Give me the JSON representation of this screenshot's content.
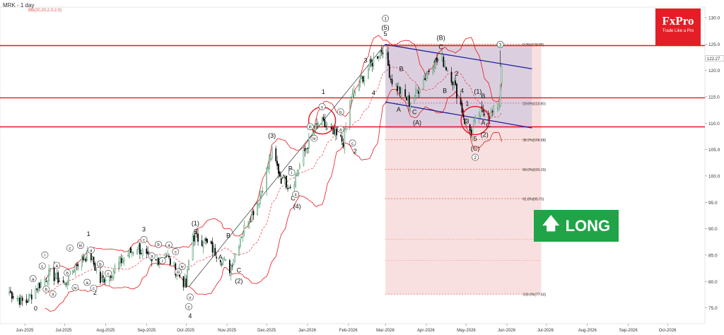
{
  "chart_data": {
    "type": "candlestick",
    "title": "MRK - 1 day",
    "indicator": "BB(20,20,2,0,2.0)",
    "ylim": [
      72,
      132
    ],
    "y_ticks": [
      75,
      80,
      85,
      90,
      95,
      100,
      105,
      110,
      115,
      120,
      125,
      130
    ],
    "x_ticks": [
      "Jun-2025",
      "Jul-2025",
      "Aug-2025",
      "Sep-2025",
      "Oct-2025",
      "Nov-2025",
      "Dec-2025",
      "Jan-2026",
      "Feb-2026",
      "Mar-2026",
      "Apr-2026",
      "May-2026",
      "Jun-2026",
      "Jul-2026",
      "Aug-2026",
      "Sep-2026",
      "Oct-2026"
    ],
    "last_price": "122.27",
    "horizontal_levels": [
      124.7,
      114.8,
      109.3
    ],
    "fib_levels": [
      {
        "label": "0.0%(124.98)",
        "value": 124.98
      },
      {
        "label": "23.6%(113.80)",
        "value": 113.8
      },
      {
        "label": "38.2%(106.88)",
        "value": 106.88
      },
      {
        "label": "50.0%(101.29)",
        "value": 101.29
      },
      {
        "label": "61.8%(95.70)",
        "value": 95.7
      },
      {
        "label": "100.0%(77.60)",
        "value": 77.6
      }
    ],
    "close_path": [
      {
        "d": "2025-05-20",
        "v": 78
      },
      {
        "d": "2025-06-01",
        "v": 75.8
      },
      {
        "d": "2025-06-10",
        "v": 79
      },
      {
        "d": "2025-06-20",
        "v": 81.5
      },
      {
        "d": "2025-07-01",
        "v": 79.5
      },
      {
        "d": "2025-07-10",
        "v": 83.5
      },
      {
        "d": "2025-07-20",
        "v": 85.3
      },
      {
        "d": "2025-07-28",
        "v": 80
      },
      {
        "d": "2025-08-05",
        "v": 81.6
      },
      {
        "d": "2025-08-15",
        "v": 84.5
      },
      {
        "d": "2025-08-25",
        "v": 86.6
      },
      {
        "d": "2025-09-05",
        "v": 83.3
      },
      {
        "d": "2025-09-15",
        "v": 85.2
      },
      {
        "d": "2025-09-25",
        "v": 81.5
      },
      {
        "d": "2025-10-01",
        "v": 79
      },
      {
        "d": "2025-10-05",
        "v": 88.7
      },
      {
        "d": "2025-10-15",
        "v": 87.5
      },
      {
        "d": "2025-10-25",
        "v": 85.2
      },
      {
        "d": "2025-11-03",
        "v": 82.4
      },
      {
        "d": "2025-11-12",
        "v": 89
      },
      {
        "d": "2025-11-25",
        "v": 95.5
      },
      {
        "d": "2025-12-05",
        "v": 104.5
      },
      {
        "d": "2025-12-12",
        "v": 99.5
      },
      {
        "d": "2025-12-20",
        "v": 98
      },
      {
        "d": "2026-01-01",
        "v": 106
      },
      {
        "d": "2026-01-10",
        "v": 110.5
      },
      {
        "d": "2026-01-20",
        "v": 108
      },
      {
        "d": "2026-01-28",
        "v": 106.5
      },
      {
        "d": "2026-02-03",
        "v": 114.5
      },
      {
        "d": "2026-02-10",
        "v": 118
      },
      {
        "d": "2026-02-20",
        "v": 122
      },
      {
        "d": "2026-02-28",
        "v": 124.5
      },
      {
        "d": "2026-03-05",
        "v": 118.5
      },
      {
        "d": "2026-03-12",
        "v": 116
      },
      {
        "d": "2026-03-20",
        "v": 113.7
      },
      {
        "d": "2026-03-27",
        "v": 117
      },
      {
        "d": "2026-04-05",
        "v": 121
      },
      {
        "d": "2026-04-12",
        "v": 122.5
      },
      {
        "d": "2026-04-20",
        "v": 118.8
      },
      {
        "d": "2026-04-27",
        "v": 113.5
      },
      {
        "d": "2026-05-01",
        "v": 109.5
      },
      {
        "d": "2026-05-05",
        "v": 108.3
      },
      {
        "d": "2026-05-10",
        "v": 111.5
      },
      {
        "d": "2026-05-15",
        "v": 112.5
      },
      {
        "d": "2026-05-20",
        "v": 111.5
      },
      {
        "d": "2026-05-26",
        "v": 113.8
      },
      {
        "d": "2026-05-28",
        "v": 121.5
      }
    ],
    "wave_labels": [
      {
        "d": "2025-06-09",
        "v": 74.5,
        "t": "0",
        "c": false
      },
      {
        "d": "2025-06-07",
        "v": 80.2,
        "t": "a",
        "c": true
      },
      {
        "d": "2025-06-14",
        "v": 82.6,
        "t": "c",
        "c": true
      },
      {
        "d": "2025-06-16",
        "v": 84.7,
        "t": "i",
        "c": true
      },
      {
        "d": "2025-06-17",
        "v": 78.2,
        "t": "b",
        "c": true
      },
      {
        "d": "2025-06-22",
        "v": 77.3,
        "t": "ii",
        "c": true
      },
      {
        "d": "2025-06-25",
        "v": 82.7,
        "t": "a",
        "c": true
      },
      {
        "d": "2025-07-03",
        "v": 81.3,
        "t": "b",
        "c": true
      },
      {
        "d": "2025-07-05",
        "v": 86.0,
        "t": "c",
        "c": true
      },
      {
        "d": "2025-07-09",
        "v": 78.5,
        "t": "iv",
        "c": true
      },
      {
        "d": "2025-07-13",
        "v": 86.5,
        "t": "iii",
        "c": true
      },
      {
        "d": "2025-07-19",
        "v": 88.6,
        "t": "1",
        "c": false
      },
      {
        "d": "2025-07-21",
        "v": 85.6,
        "t": "a",
        "c": true
      },
      {
        "d": "2025-07-28",
        "v": 83.0,
        "t": "b",
        "c": true
      },
      {
        "d": "2025-07-24",
        "v": 77.5,
        "t": "2",
        "c": false
      },
      {
        "d": "2025-07-18",
        "v": 79.5,
        "t": "a",
        "c": true
      },
      {
        "d": "2025-07-23",
        "v": 78.4,
        "t": "c",
        "c": true
      },
      {
        "d": "2025-08-03",
        "v": 81.2,
        "t": "c",
        "c": true
      },
      {
        "d": "2025-08-30",
        "v": 89.5,
        "t": "3",
        "c": false
      },
      {
        "d": "2025-08-30",
        "v": 87.6,
        "t": "c",
        "c": true
      },
      {
        "d": "2025-09-05",
        "v": 84.5,
        "t": "a",
        "c": true
      },
      {
        "d": "2025-09-10",
        "v": 86.7,
        "t": "b",
        "c": true
      },
      {
        "d": "2025-09-18",
        "v": 86.6,
        "t": "a",
        "c": true
      },
      {
        "d": "2025-09-13",
        "v": 83.6,
        "t": "i",
        "c": true
      },
      {
        "d": "2025-09-23",
        "v": 85.3,
        "t": "c",
        "c": true
      },
      {
        "d": "2025-09-25",
        "v": 81.5,
        "t": "iii",
        "c": true
      },
      {
        "d": "2025-09-28",
        "v": 82.5,
        "t": "iv",
        "c": true
      },
      {
        "d": "2025-10-04",
        "v": 76.7,
        "t": "v",
        "c": true
      },
      {
        "d": "2025-10-03",
        "v": 74.9,
        "t": "c",
        "c": true
      },
      {
        "d": "2025-10-04",
        "v": 73.1,
        "t": "4",
        "c": false
      },
      {
        "d": "2025-10-08",
        "v": 90.6,
        "t": "(1)",
        "c": false
      },
      {
        "d": "2025-10-08",
        "v": 89.0,
        "t": "5",
        "c": false
      },
      {
        "d": "2025-11-02",
        "v": 88.3,
        "t": "B",
        "c": false
      },
      {
        "d": "2025-10-27",
        "v": 84.2,
        "t": "A",
        "c": false
      },
      {
        "d": "2025-11-10",
        "v": 81.7,
        "t": "C",
        "c": false
      },
      {
        "d": "2025-11-10",
        "v": 79.7,
        "t": "(2)",
        "c": false
      },
      {
        "d": "2025-12-05",
        "v": 107.2,
        "t": "(3)",
        "c": false
      },
      {
        "d": "2025-12-14",
        "v": 99.4,
        "t": "A",
        "c": false
      },
      {
        "d": "2025-12-19",
        "v": 101.0,
        "t": "B",
        "c": false
      },
      {
        "d": "2025-12-21",
        "v": 95.4,
        "t": "C",
        "c": false
      },
      {
        "d": "2025-12-24",
        "v": 93.8,
        "t": "(4)",
        "c": false
      },
      {
        "d": "2025-12-20",
        "v": 100.3,
        "t": "i",
        "c": true
      },
      {
        "d": "2025-12-23",
        "v": 96.2,
        "t": "ii",
        "c": true
      },
      {
        "d": "2026-01-03",
        "v": 109.0,
        "t": "iii",
        "c": true
      },
      {
        "d": "2026-01-06",
        "v": 106.8,
        "t": "iv",
        "c": true
      },
      {
        "d": "2026-01-12",
        "v": 112.8,
        "t": "v",
        "c": true
      },
      {
        "d": "2026-01-13",
        "v": 115.5,
        "t": "1",
        "c": false
      },
      {
        "d": "2026-01-26",
        "v": 108.5,
        "t": "a",
        "c": true
      },
      {
        "d": "2026-01-26",
        "v": 111.8,
        "t": "b",
        "c": true
      },
      {
        "d": "2026-02-04",
        "v": 105.9,
        "t": "c",
        "c": true
      },
      {
        "d": "2026-02-06",
        "v": 104.3,
        "t": "2",
        "c": false
      },
      {
        "d": "2026-02-14",
        "v": 121.5,
        "t": "3",
        "c": false
      },
      {
        "d": "2026-02-20",
        "v": 115.3,
        "t": "4",
        "c": false
      },
      {
        "d": "2026-03-01",
        "v": 126.5,
        "t": "5",
        "c": false
      },
      {
        "d": "2026-03-01",
        "v": 129.5,
        "t": "1",
        "c": true
      },
      {
        "d": "2026-03-01",
        "v": 127.7,
        "t": "(5)",
        "c": false
      },
      {
        "d": "2026-03-13",
        "v": 119.9,
        "t": "B",
        "c": false
      },
      {
        "d": "2026-03-11",
        "v": 112.2,
        "t": "A",
        "c": false
      },
      {
        "d": "2026-03-23",
        "v": 111.7,
        "t": "C",
        "c": false
      },
      {
        "d": "2026-03-25",
        "v": 109.7,
        "t": "(A)",
        "c": false
      },
      {
        "d": "2026-04-12",
        "v": 125.8,
        "t": "(B)",
        "c": false
      },
      {
        "d": "2026-04-12",
        "v": 124.0,
        "t": "C",
        "c": false
      },
      {
        "d": "2026-04-08",
        "v": 121.4,
        "t": "A",
        "c": false
      },
      {
        "d": "2026-04-15",
        "v": 115.7,
        "t": "B",
        "c": false
      },
      {
        "d": "2026-04-24",
        "v": 119.0,
        "t": "2",
        "c": false
      },
      {
        "d": "2026-04-28",
        "v": 115.7,
        "t": "4",
        "c": false
      },
      {
        "d": "2026-05-02",
        "v": 113.3,
        "t": "1",
        "c": false
      },
      {
        "d": "2026-05-10",
        "v": 115.6,
        "t": "(1)",
        "c": false
      },
      {
        "d": "2026-05-14",
        "v": 114.7,
        "t": "B",
        "c": false
      },
      {
        "d": "2026-05-14",
        "v": 109.7,
        "t": "A",
        "c": false
      },
      {
        "d": "2026-05-18",
        "v": 109.2,
        "t": "C",
        "c": false
      },
      {
        "d": "2026-05-15",
        "v": 107.4,
        "t": "(2)",
        "c": false
      },
      {
        "d": "2026-05-02",
        "v": 110.0,
        "t": "3",
        "c": false
      },
      {
        "d": "2026-05-08",
        "v": 106.6,
        "t": "5",
        "c": false
      },
      {
        "d": "2026-05-08",
        "v": 104.8,
        "t": "(C)",
        "c": false
      },
      {
        "d": "2026-05-08",
        "v": 103.2,
        "t": "2",
        "c": true
      },
      {
        "d": "2026-05-27",
        "v": 124.6,
        "t": "3",
        "c": true
      }
    ]
  },
  "brand": {
    "name": "FxPro",
    "tagline": "Trade Like a Pro",
    "color": "#e41e26"
  },
  "signal": {
    "label": "LONG",
    "icon": "arrow-up-icon",
    "color": "#21a447"
  },
  "colors": {
    "up": "#2e8b57",
    "down": "#000000",
    "level": "#e8151b",
    "channel": "#1f1f9a",
    "bands": "#e8151b",
    "fib_zone": "#f7d5d6"
  }
}
